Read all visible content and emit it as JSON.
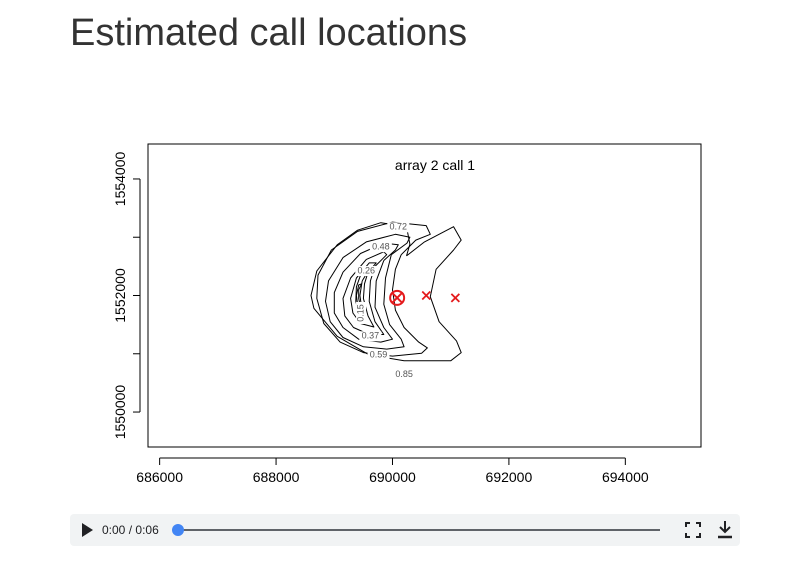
{
  "page": {
    "title": "Estimated call locations"
  },
  "chart_data": {
    "type": "contour",
    "title": "array 2 call 1",
    "xlabel": "",
    "ylabel": "",
    "xlim": [
      685800,
      695300
    ],
    "ylim": [
      1549400,
      1554600
    ],
    "x_ticks": [
      686000,
      688000,
      690000,
      692000,
      694000
    ],
    "y_ticks": [
      1550000,
      1551000,
      1552000,
      1553000,
      1554000
    ],
    "x_tick_labels": [
      "686000",
      "688000",
      "690000",
      "692000",
      "694000"
    ],
    "y_tick_labels": [
      "1550000",
      "1552000",
      "1554000"
    ],
    "estimated_location": {
      "x": 690080,
      "y": 1551960,
      "marker": "circled-x",
      "color": "#e41a1c"
    },
    "microphones": [
      {
        "x": 690580,
        "y": 1552000
      },
      {
        "x": 691080,
        "y": 1551960
      }
    ],
    "mic_color": "#e41a1c",
    "contour_levels": [
      {
        "level": 0.85,
        "label": "0.85",
        "points": [
          [
            690240,
            1552680
          ],
          [
            690550,
            1552920
          ],
          [
            691050,
            1553180
          ],
          [
            691180,
            1552950
          ],
          [
            691050,
            1552780
          ],
          [
            690750,
            1552450
          ],
          [
            690650,
            1551980
          ],
          [
            690800,
            1551550
          ],
          [
            691100,
            1551220
          ],
          [
            691180,
            1551020
          ],
          [
            691000,
            1550880
          ],
          [
            690200,
            1550880
          ],
          [
            689600,
            1550980
          ],
          [
            689050,
            1551300
          ],
          [
            688650,
            1551780
          ],
          [
            688600,
            1552000
          ],
          [
            688700,
            1552420
          ],
          [
            689050,
            1552870
          ],
          [
            689400,
            1553120
          ],
          [
            689800,
            1553250
          ],
          [
            690240,
            1553180
          ],
          [
            690300,
            1552880
          ],
          [
            690240,
            1552680
          ]
        ]
      },
      {
        "level": 0.72,
        "label": "0.72",
        "points": [
          [
            690150,
            1552700
          ],
          [
            690400,
            1552950
          ],
          [
            690650,
            1553050
          ],
          [
            690580,
            1553200
          ],
          [
            690000,
            1553260
          ],
          [
            689400,
            1553100
          ],
          [
            688950,
            1552780
          ],
          [
            688720,
            1552350
          ],
          [
            688700,
            1551950
          ],
          [
            688820,
            1551520
          ],
          [
            689100,
            1551200
          ],
          [
            689500,
            1551020
          ],
          [
            690000,
            1550960
          ],
          [
            690500,
            1551010
          ],
          [
            690600,
            1551100
          ],
          [
            690450,
            1551200
          ],
          [
            690200,
            1551450
          ],
          [
            690050,
            1551750
          ],
          [
            690000,
            1552100
          ],
          [
            690050,
            1552450
          ],
          [
            690150,
            1552700
          ]
        ]
      },
      {
        "level": 0.59,
        "label": "0.59",
        "points": [
          [
            689980,
            1552700
          ],
          [
            690250,
            1552900
          ],
          [
            690300,
            1553000
          ],
          [
            690050,
            1553050
          ],
          [
            689550,
            1552920
          ],
          [
            689150,
            1552650
          ],
          [
            688900,
            1552250
          ],
          [
            688850,
            1551900
          ],
          [
            688930,
            1551550
          ],
          [
            689150,
            1551280
          ],
          [
            689500,
            1551120
          ],
          [
            689900,
            1551080
          ],
          [
            690200,
            1551120
          ],
          [
            690150,
            1551250
          ],
          [
            689950,
            1551500
          ],
          [
            689850,
            1551850
          ],
          [
            689880,
            1552300
          ],
          [
            689980,
            1552700
          ]
        ]
      },
      {
        "level": 0.48,
        "label": "0.48",
        "points": [
          [
            689850,
            1552600
          ],
          [
            690050,
            1552780
          ],
          [
            690100,
            1552870
          ],
          [
            689850,
            1552900
          ],
          [
            689450,
            1552720
          ],
          [
            689150,
            1552400
          ],
          [
            689000,
            1552050
          ],
          [
            689000,
            1551700
          ],
          [
            689150,
            1551450
          ],
          [
            689420,
            1551250
          ],
          [
            689800,
            1551200
          ],
          [
            690000,
            1551250
          ],
          [
            689850,
            1551450
          ],
          [
            689700,
            1551800
          ],
          [
            689720,
            1552250
          ],
          [
            689850,
            1552600
          ]
        ]
      },
      {
        "level": 0.37,
        "label": "0.37",
        "points": [
          [
            689700,
            1552500
          ],
          [
            689900,
            1552700
          ],
          [
            689850,
            1552750
          ],
          [
            689550,
            1552620
          ],
          [
            689280,
            1552300
          ],
          [
            689150,
            1551950
          ],
          [
            689180,
            1551650
          ],
          [
            689330,
            1551450
          ],
          [
            689600,
            1551330
          ],
          [
            689850,
            1551330
          ],
          [
            689700,
            1551550
          ],
          [
            689600,
            1551900
          ],
          [
            689620,
            1552250
          ],
          [
            689700,
            1552500
          ]
        ]
      },
      {
        "level": 0.26,
        "label": "0.26",
        "points": [
          [
            689580,
            1552400
          ],
          [
            689720,
            1552560
          ],
          [
            689600,
            1552560
          ],
          [
            689380,
            1552300
          ],
          [
            689280,
            1551950
          ],
          [
            689320,
            1551700
          ],
          [
            689450,
            1551520
          ],
          [
            689680,
            1551460
          ],
          [
            689580,
            1551650
          ],
          [
            689500,
            1551950
          ],
          [
            689520,
            1552200
          ],
          [
            689580,
            1552400
          ]
        ]
      },
      {
        "level": 0.15,
        "label": "0.15",
        "points": [
          [
            689480,
            1552250
          ],
          [
            689570,
            1552400
          ],
          [
            689470,
            1552400
          ],
          [
            689380,
            1552150
          ],
          [
            689370,
            1551900
          ],
          [
            689420,
            1551700
          ],
          [
            689530,
            1551600
          ],
          [
            689470,
            1551800
          ],
          [
            689440,
            1552000
          ],
          [
            689480,
            1552250
          ]
        ]
      },
      {
        "level": 0.04,
        "label": "",
        "points": [
          [
            689420,
            1552100
          ],
          [
            689470,
            1552200
          ],
          [
            689420,
            1552180
          ],
          [
            689380,
            1552000
          ],
          [
            689400,
            1551850
          ],
          [
            689450,
            1551800
          ],
          [
            689420,
            1551950
          ],
          [
            689420,
            1552100
          ]
        ]
      }
    ],
    "contour_label_positions": [
      {
        "label": "0.72",
        "x": 690100,
        "y": 1553170
      },
      {
        "label": "0.48",
        "x": 689800,
        "y": 1552830
      },
      {
        "label": "0.26",
        "x": 689550,
        "y": 1552420
      },
      {
        "label": "0.15",
        "x": 689460,
        "y": 1551700,
        "rotate": -90
      },
      {
        "label": "0.37",
        "x": 689620,
        "y": 1551300
      },
      {
        "label": "0.59",
        "x": 689760,
        "y": 1550980
      },
      {
        "label": "0.85",
        "x": 690200,
        "y": 1550640
      }
    ],
    "grid": false,
    "legend": "none"
  },
  "audio_player": {
    "current_time": "0:00",
    "separator": "/",
    "duration": "0:06",
    "progress": 0
  }
}
